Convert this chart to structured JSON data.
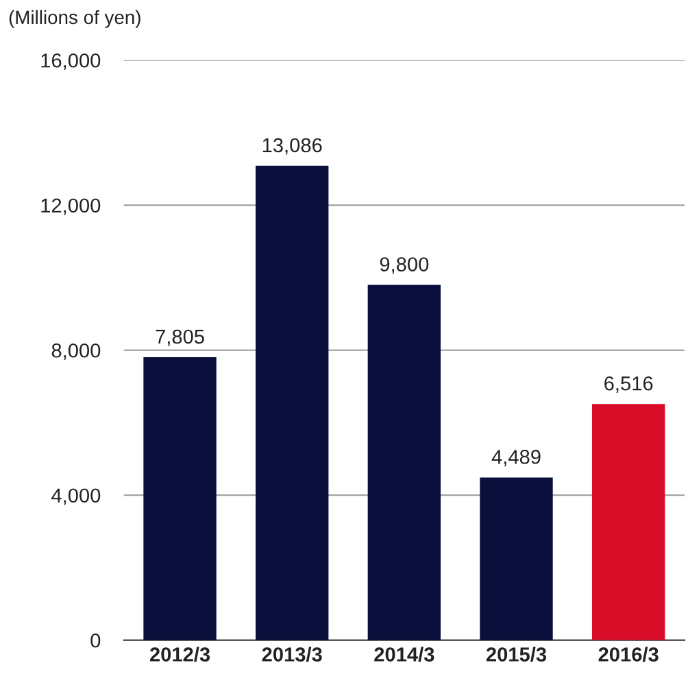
{
  "chart_data": {
    "type": "bar",
    "ylabel": "(Millions of yen)",
    "categories": [
      "2012/3",
      "2013/3",
      "2014/3",
      "2015/3",
      "2016/3"
    ],
    "values": [
      7805,
      13086,
      9800,
      4489,
      6516
    ],
    "colors": [
      "#0b0f3b",
      "#0b0f3b",
      "#0b0f3b",
      "#0b0f3b",
      "#d90d27"
    ],
    "value_labels": [
      "7,805",
      "13,086",
      "9,800",
      "4,489",
      "6,516"
    ],
    "ylim": [
      0,
      16000
    ],
    "yticks": [
      0,
      {
        "value": 4000,
        "label": "4,000"
      },
      {
        "value": 8000,
        "label": "8,000"
      },
      {
        "value": 12000,
        "label": "12,000"
      },
      {
        "value": 16000,
        "label": "16,000"
      }
    ],
    "grid": "y"
  }
}
